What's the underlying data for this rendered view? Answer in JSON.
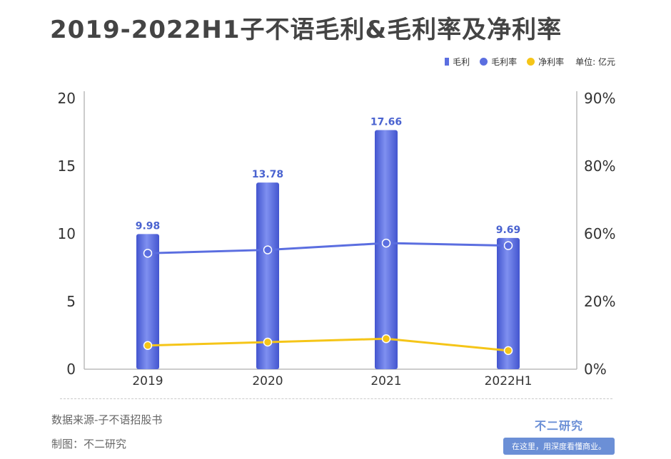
{
  "title": "2019-2022H1子不语毛利&毛利率及净利率",
  "legend": {
    "items": [
      {
        "label": "毛利",
        "color": "#5b6ee0",
        "shape": "bar"
      },
      {
        "label": "毛利率",
        "color": "#5b6ee0",
        "shape": "dot"
      },
      {
        "label": "净利率",
        "color": "#f5c518",
        "shape": "dot"
      }
    ],
    "unit": "单位: 亿元"
  },
  "chart_data": {
    "type": "bar",
    "categories": [
      "2019",
      "2020",
      "2021",
      "2022H1"
    ],
    "series": [
      {
        "name": "毛利",
        "type": "bar",
        "axis": "left",
        "values": [
          9.98,
          13.78,
          17.66,
          9.69
        ],
        "color": "#5b6ee0",
        "labels": [
          "9.98",
          "13.78",
          "17.66",
          "9.69"
        ]
      },
      {
        "name": "毛利率",
        "type": "line",
        "axis": "right",
        "values": [
          48.5,
          50.5,
          54.5,
          53.0
        ],
        "color": "#5b6ee0"
      },
      {
        "name": "净利率",
        "type": "line",
        "axis": "right",
        "values": [
          7.0,
          8.0,
          9.0,
          5.5
        ],
        "color": "#f5c518"
      }
    ],
    "y_left": {
      "min": 0,
      "max": 20,
      "ticks": [
        0,
        5,
        10,
        15,
        20
      ],
      "tick_labels": [
        "0",
        "5",
        "10",
        "15",
        "20"
      ]
    },
    "y_right": {
      "ticks": [
        0,
        20,
        60,
        80,
        90
      ],
      "tick_labels": [
        "0%",
        "20%",
        "60%",
        "80%",
        "90%"
      ]
    },
    "grid": false,
    "legend_position": "top-right"
  },
  "footer": {
    "source": "数据来源-子不语招股书",
    "maker": "制图：不二研究"
  },
  "brand": {
    "name": "不二研究",
    "slogan": "在这里，用深度看懂商业。"
  }
}
